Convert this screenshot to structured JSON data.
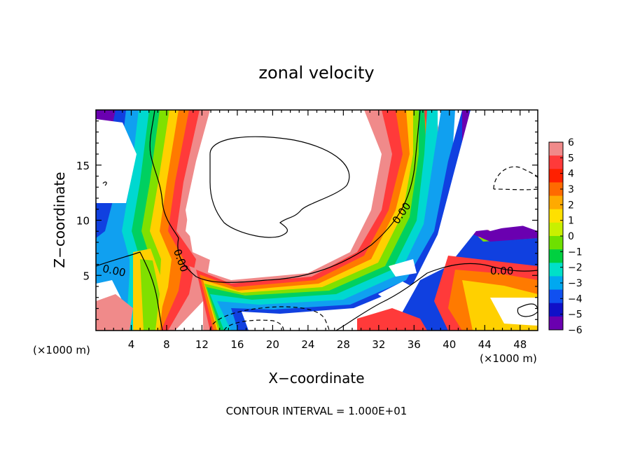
{
  "chart_data": {
    "type": "heatmap",
    "title": "zonal velocity",
    "xlabel": "X−coordinate",
    "ylabel": "Z−coordinate",
    "x_unit_left": "(×1000 m)",
    "x_unit_right": "(×1000 m)",
    "footnote": "CONTOUR INTERVAL = 1.000E+01",
    "xlim": [
      0,
      50
    ],
    "ylim": [
      0,
      20
    ],
    "x_ticks": [
      "4",
      "8",
      "12",
      "16",
      "20",
      "24",
      "28",
      "32",
      "36",
      "40",
      "44",
      "48"
    ],
    "y_ticks": [
      "5",
      "10",
      "15"
    ],
    "contour_labels": [
      "0.00",
      "0.00",
      "0.00",
      "0.00"
    ],
    "colorbar": {
      "labels": [
        "6",
        "5",
        "4",
        "3",
        "2",
        "1",
        "0",
        "−1",
        "−2",
        "−3",
        "−4",
        "−5",
        "−6"
      ],
      "colors": [
        "#f08a8a",
        "#ff3a3a",
        "#ff2000",
        "#ff6a00",
        "#ffaa00",
        "#ffe000",
        "#c8f000",
        "#6ee000",
        "#00d040",
        "#00e0c8",
        "#00a8f0",
        "#1050f0",
        "#1010c8",
        "#6a00b0"
      ]
    }
  }
}
